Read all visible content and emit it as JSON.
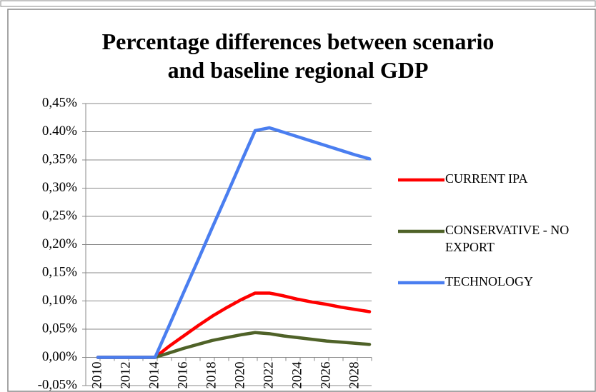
{
  "chart_data": {
    "type": "line",
    "title": "Percentage differences between scenario and baseline regional GDP",
    "categories": [
      "2010",
      null,
      "2012",
      null,
      "2014",
      null,
      "2016",
      null,
      "2018",
      null,
      "2020",
      null,
      "2022",
      null,
      "2024",
      null,
      "2026",
      null,
      "2028",
      null
    ],
    "series": [
      {
        "name": "CURRENT IPA",
        "color": "#ff0000",
        "values": [
          0,
          0,
          0,
          0,
          0,
          0.02,
          0.038,
          0.056,
          0.073,
          0.088,
          0.102,
          0.114,
          0.114,
          0.109,
          0.103,
          0.098,
          0.094,
          0.089,
          0.085,
          0.081
        ]
      },
      {
        "name": "CONSERVATIVE - NO EXPORT",
        "color": "#4f6228",
        "values": [
          0,
          0,
          0,
          0,
          0,
          0.008,
          0.016,
          0.023,
          0.03,
          0.035,
          0.04,
          0.044,
          0.042,
          0.038,
          0.035,
          0.032,
          0.029,
          0.027,
          0.025,
          0.023
        ]
      },
      {
        "name": "TECHNOLOGY",
        "color": "#4a7ef0",
        "values": [
          0,
          0,
          0,
          0,
          0,
          0.057,
          0.115,
          0.172,
          0.23,
          0.287,
          0.345,
          0.402,
          0.407,
          0.399,
          0.391,
          0.383,
          0.375,
          0.367,
          0.359,
          0.352
        ]
      }
    ],
    "ylim": [
      -0.05,
      0.45
    ],
    "yticks": [
      {
        "value": -0.05,
        "label": "-0,05%"
      },
      {
        "value": 0,
        "label": "0,00%"
      },
      {
        "value": 0.05,
        "label": "0,05%"
      },
      {
        "value": 0.1,
        "label": "0,10%"
      },
      {
        "value": 0.15,
        "label": "0,15%"
      },
      {
        "value": 0.2,
        "label": "0,20%"
      },
      {
        "value": 0.25,
        "label": "0,25%"
      },
      {
        "value": 0.3,
        "label": "0,30%"
      },
      {
        "value": 0.35,
        "label": "0,35%"
      },
      {
        "value": 0.4,
        "label": "0.40%"
      },
      {
        "value": 0.45,
        "label": "0,45%"
      }
    ],
    "grid": true,
    "legend": "right"
  }
}
